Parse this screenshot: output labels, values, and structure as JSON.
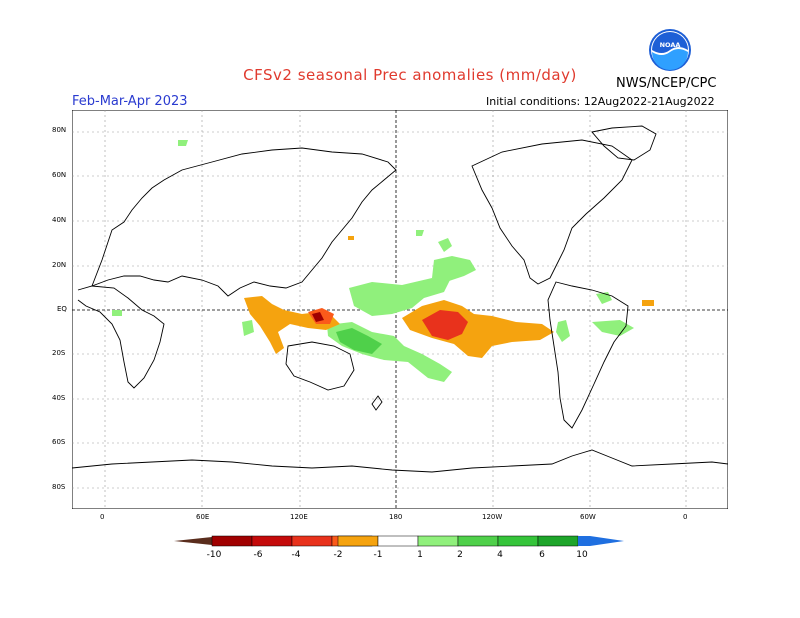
{
  "header": {
    "title": "CFSv2 seasonal Prec anomalies (mm/day)",
    "season": "Feb-Mar-Apr 2023",
    "initial_conditions": "Initial conditions: 12Aug2022-21Aug2022",
    "agency": "NWS/NCEP/CPC",
    "logo_text": "NOAA"
  },
  "map": {
    "lat_labels": [
      "80N",
      "60N",
      "40N",
      "20N",
      "EQ",
      "20S",
      "40S",
      "60S",
      "80S"
    ],
    "lon_labels": [
      "0",
      "60E",
      "120E",
      "180",
      "120W",
      "60W",
      "0"
    ],
    "colors": {
      "dry_strong": "#e8321c",
      "dry": "#f5a30f",
      "dry_mid": "#fb5a1a",
      "wet_light": "#90f07c",
      "wet": "#4fd04a",
      "wet_strong": "#1ea52a"
    }
  },
  "colorbar": {
    "labels": [
      "-10",
      "-6",
      "-4",
      "-2",
      "-1",
      "1",
      "2",
      "4",
      "6",
      "10"
    ],
    "colors": [
      "#5a2d1d",
      "#a00000",
      "#c40a0a",
      "#e8321c",
      "#fb5a1a",
      "#f5a30f",
      "#ffffff",
      "#90f07c",
      "#4fd04a",
      "#35c43a",
      "#1ea52a",
      "#158c2a",
      "#1f6fe0"
    ]
  }
}
